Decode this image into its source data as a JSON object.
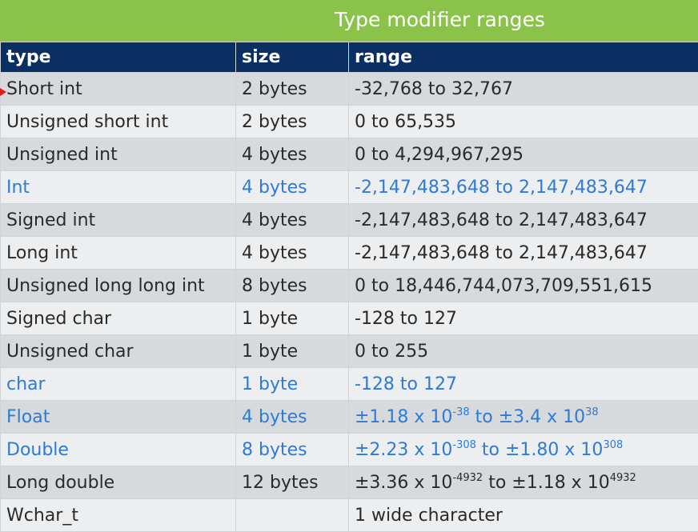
{
  "banner": {
    "title": "Type modifier ranges"
  },
  "colors": {
    "banner": "#8bc34a",
    "header": "#0a2f63",
    "highlight_text": "#2e7bd3",
    "marker": "#e21b1b"
  },
  "table": {
    "headers": [
      "type",
      "size",
      "range"
    ],
    "rows": [
      {
        "type": "Short int",
        "size": "2 bytes",
        "range": "-32,768 to 32,767",
        "highlighted": false
      },
      {
        "type": "Unsigned short int",
        "size": "2 bytes",
        "range": "0 to 65,535",
        "highlighted": false
      },
      {
        "type": "Unsigned int",
        "size": "4 bytes",
        "range": "0 to 4,294,967,295",
        "highlighted": false
      },
      {
        "type": "Int",
        "size": "4 bytes",
        "range": "-2,147,483,648 to 2,147,483,647",
        "highlighted": true
      },
      {
        "type": "Signed int",
        "size": "4 bytes",
        "range": "-2,147,483,648 to 2,147,483,647",
        "highlighted": false
      },
      {
        "type": "Long int",
        "size": "4 bytes",
        "range": "-2,147,483,648 to 2,147,483,647",
        "highlighted": false
      },
      {
        "type": "Unsigned long long int",
        "size": "8 bytes",
        "range": "0 to 18,446,744,073,709,551,615",
        "highlighted": false
      },
      {
        "type": "Signed char",
        "size": "1 byte",
        "range": "-128 to 127",
        "highlighted": false
      },
      {
        "type": "Unsigned char",
        "size": "1 byte",
        "range": "0 to 255",
        "highlighted": false
      },
      {
        "type": "char",
        "size": "1 byte",
        "range": "-128 to 127",
        "highlighted": true
      },
      {
        "type": "Float",
        "size": "4 bytes",
        "range_parts": [
          "±1.18 x 10",
          "-38",
          " to ±3.4 x 10",
          "38"
        ],
        "highlighted": true
      },
      {
        "type": "Double",
        "size": "8 bytes",
        "range_parts": [
          "±2.23 x 10",
          "-308",
          " to ±1.80 x 10",
          "308"
        ],
        "highlighted": true
      },
      {
        "type": "Long double",
        "size": "12 bytes",
        "range_parts": [
          "±3.36 x 10",
          "-4932",
          " to ±1.18 x 10",
          "4932"
        ],
        "highlighted": false
      },
      {
        "type": "Wchar_t",
        "size": "",
        "range": "1 wide character",
        "highlighted": false
      }
    ]
  }
}
